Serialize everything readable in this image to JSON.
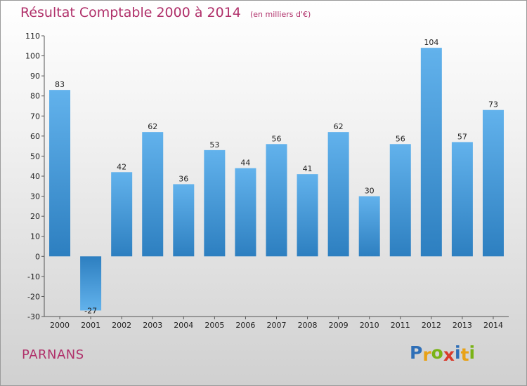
{
  "title": "Résultat Comptable 2000 à 2014",
  "subtitle": "(en milliers d'€)",
  "commune": "PARNANS",
  "logo": {
    "letters": [
      {
        "ch": "P",
        "color": "#2f6fb7"
      },
      {
        "ch": "r",
        "color": "#e8a217"
      },
      {
        "ch": "o",
        "color": "#7ab317"
      },
      {
        "ch": "x",
        "color": "#d93a2b"
      },
      {
        "ch": "i",
        "color": "#2f6fb7"
      },
      {
        "ch": "t",
        "color": "#e8a217"
      },
      {
        "ch": "i",
        "color": "#7ab317"
      }
    ]
  },
  "colors": {
    "bar_light": "#62b2ec",
    "bar_dark": "#2d7fc0",
    "title": "#b0306a"
  },
  "chart_data": {
    "type": "bar",
    "title": "Résultat Comptable 2000 à 2014",
    "subtitle": "(en milliers d'€)",
    "categories": [
      "2000",
      "2001",
      "2002",
      "2003",
      "2004",
      "2005",
      "2006",
      "2007",
      "2008",
      "2009",
      "2010",
      "2011",
      "2012",
      "2013",
      "2014"
    ],
    "values": [
      83,
      -27,
      42,
      62,
      36,
      53,
      44,
      56,
      41,
      62,
      30,
      56,
      104,
      57,
      73
    ],
    "data_labels": [
      "83",
      "-27",
      "42",
      "62",
      "36",
      "53",
      "44",
      "56",
      "41",
      "62",
      "30",
      "56",
      "104",
      "57",
      "73"
    ],
    "ylim": [
      -30,
      110
    ],
    "yticks": [
      -30,
      -20,
      -10,
      0,
      10,
      20,
      30,
      40,
      50,
      60,
      70,
      80,
      90,
      100,
      110
    ],
    "grid": false,
    "xlabel": "",
    "ylabel": ""
  }
}
